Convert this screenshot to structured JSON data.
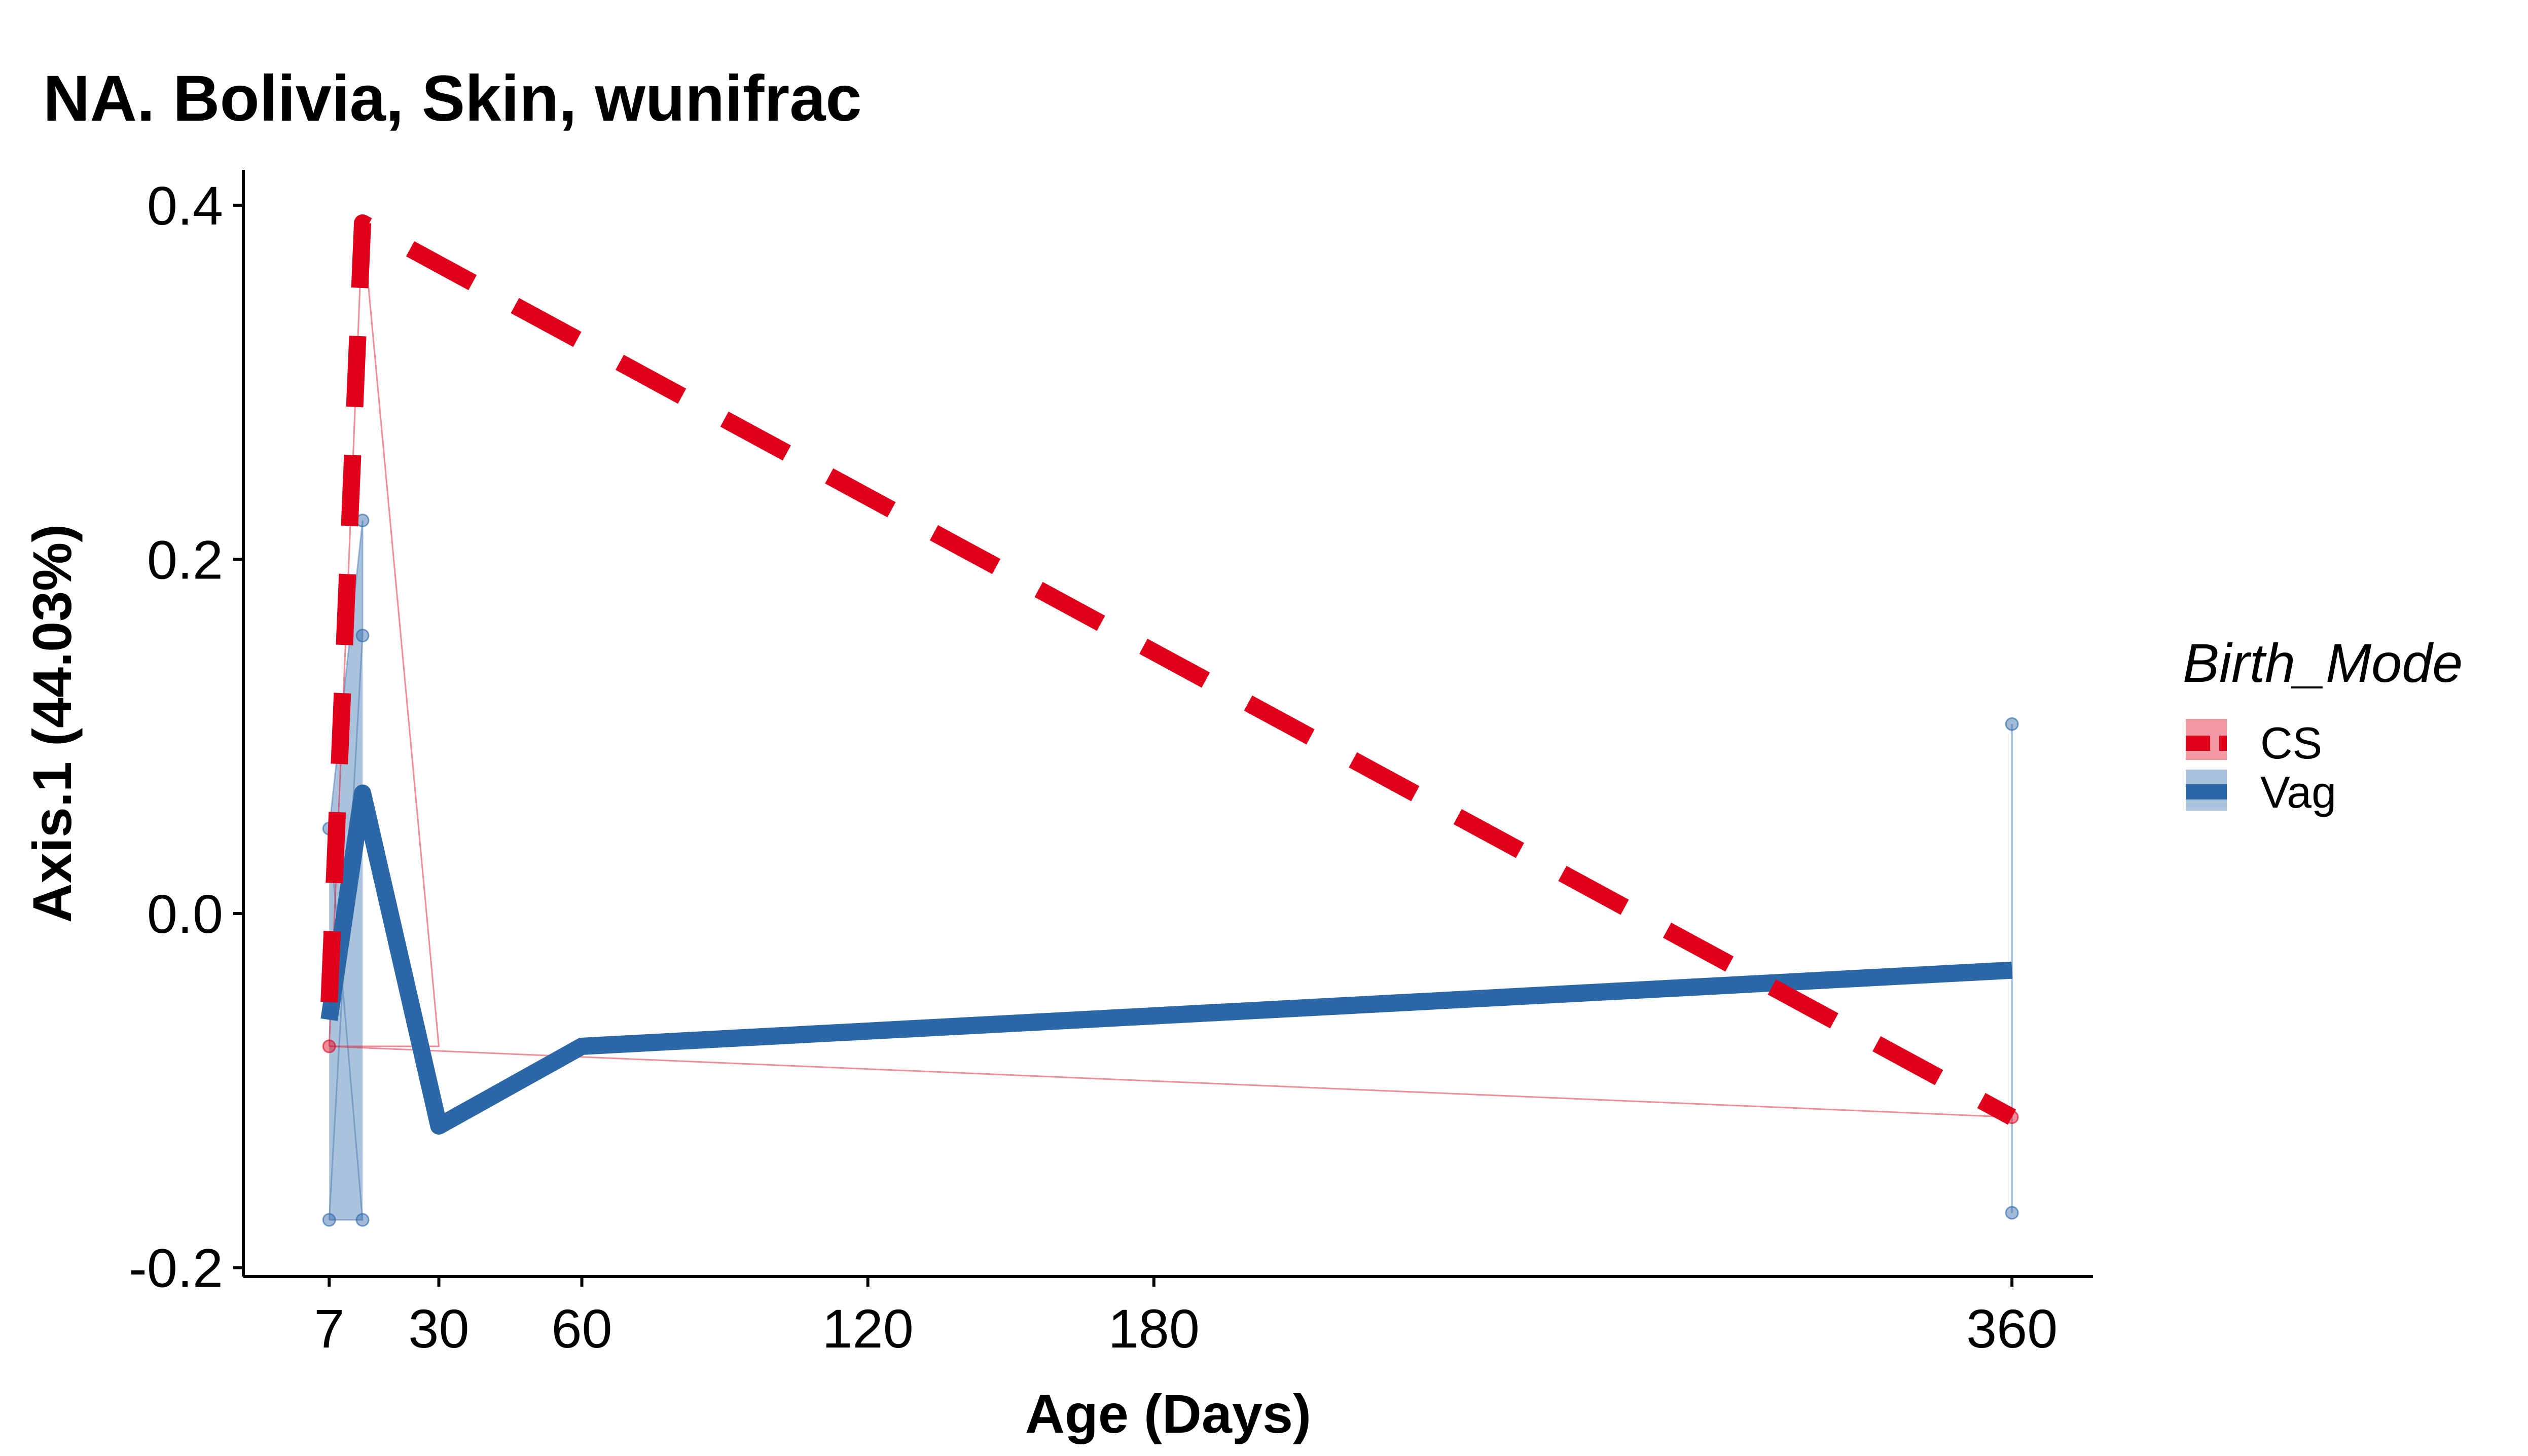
{
  "chart_data": {
    "type": "line",
    "title": "NA. Bolivia, Skin, wunifrac",
    "xlabel": "Age (Days)",
    "ylabel": "Axis.1 (44.03%)",
    "xlim": [
      -11,
      377
    ],
    "ylim": [
      -0.205,
      0.42
    ],
    "x_ticks": [
      7,
      30,
      60,
      120,
      180,
      360
    ],
    "x_tick_labels": [
      "7",
      "30",
      "60",
      "120",
      "180",
      "360"
    ],
    "y_ticks": [
      -0.2,
      0,
      0.2,
      0.4
    ],
    "y_tick_labels": [
      "-0.2",
      "0.0",
      "0.2",
      "0.4"
    ],
    "grid": false,
    "legend": {
      "title": "Birth_Mode",
      "position": "right"
    },
    "series": [
      {
        "name": "CS",
        "color": "#E0001B",
        "line_style": "dashed",
        "mean_line": [
          {
            "x": 7,
            "y": -0.05
          },
          {
            "x": 14,
            "y": 0.39
          },
          {
            "x": 360,
            "y": -0.115
          }
        ],
        "points": [
          {
            "x": 7,
            "y": -0.075
          },
          {
            "x": 14,
            "y": 0.39
          },
          {
            "x": 360,
            "y": -0.115
          }
        ],
        "trace": [
          {
            "x": 7,
            "y": -0.075
          },
          {
            "x": 14,
            "y": 0.39
          },
          {
            "x": 30,
            "y": -0.075
          },
          {
            "x": 7,
            "y": -0.075
          },
          {
            "x": 360,
            "y": -0.115
          }
        ]
      },
      {
        "name": "Vag",
        "color": "#2C67A8",
        "line_style": "solid",
        "mean_line": [
          {
            "x": 7,
            "y": -0.06
          },
          {
            "x": 14,
            "y": 0.068
          },
          {
            "x": 30,
            "y": -0.12
          },
          {
            "x": 60,
            "y": -0.075
          },
          {
            "x": 360,
            "y": -0.032
          }
        ],
        "points": [
          {
            "x": 7,
            "y": 0.048
          },
          {
            "x": 7,
            "y": -0.173
          },
          {
            "x": 14,
            "y": 0.222
          },
          {
            "x": 14,
            "y": 0.157
          },
          {
            "x": 14,
            "y": -0.173
          },
          {
            "x": 360,
            "y": 0.107
          },
          {
            "x": 360,
            "y": -0.169
          }
        ],
        "ribbon": [
          {
            "x": 7,
            "ymin": -0.173,
            "ymax": 0.048
          },
          {
            "x": 14,
            "ymin": -0.173,
            "ymax": 0.222
          }
        ],
        "trace": [
          {
            "x": 7,
            "y": -0.173
          },
          {
            "x": 14,
            "y": -0.173
          },
          {
            "x": 7,
            "y": 0.048
          },
          {
            "x": 14,
            "y": 0.222
          },
          {
            "x": 14,
            "y": 0.157
          },
          {
            "x": 7,
            "y": -0.173
          }
        ],
        "vertical_range": {
          "x": 360,
          "ymin": -0.169,
          "ymax": 0.107
        }
      }
    ]
  }
}
